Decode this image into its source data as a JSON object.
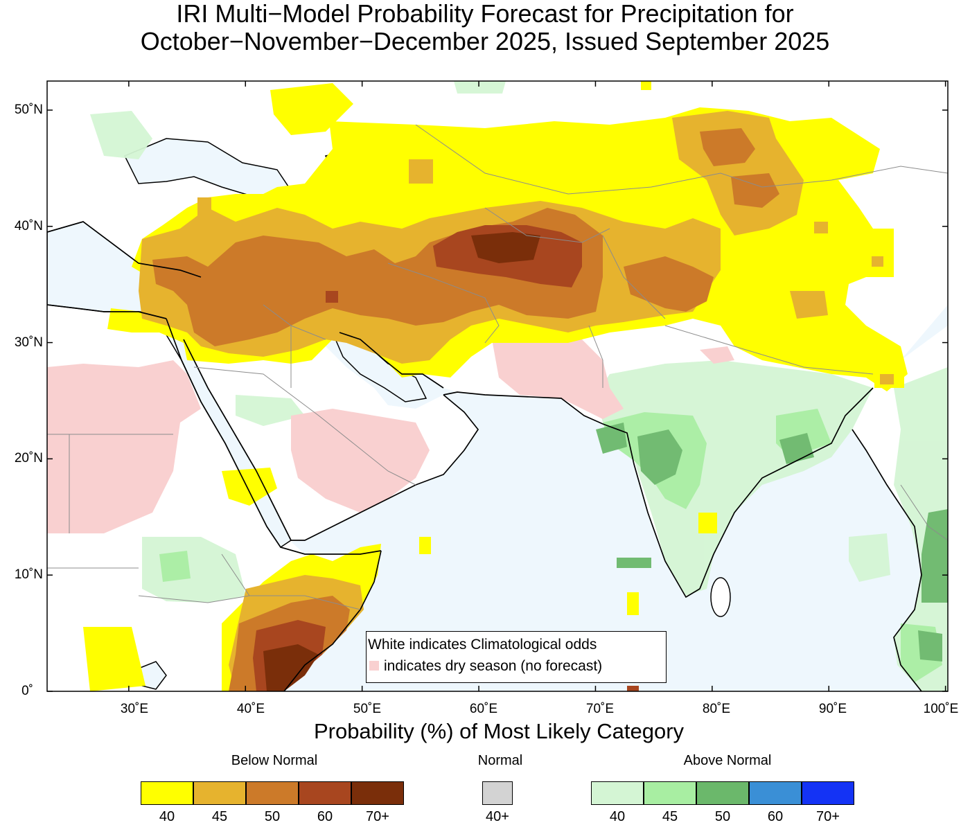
{
  "title": {
    "line1": "IRI Multi−Model Probability Forecast for Precipitation for",
    "line2": "October−November−December 2025, Issued September 2025"
  },
  "map": {
    "lat_labels": [
      "50˚N",
      "40˚N",
      "30˚N",
      "20˚N",
      "10˚N",
      "0˚"
    ],
    "lon_labels": [
      "30˚E",
      "40˚E",
      "50˚E",
      "60˚E",
      "70˚E",
      "80˚E",
      "90˚E",
      "100˚E"
    ],
    "lat_values": [
      50,
      40,
      30,
      20,
      10,
      0
    ],
    "lon_values": [
      30,
      40,
      50,
      60,
      70,
      80,
      90,
      100
    ],
    "extent": {
      "lon_min": 23,
      "lon_max": 100.2,
      "lat_min": 0,
      "lat_max": 52.5
    },
    "colors": {
      "ocean": "#eef7fd",
      "dry_season": "#f9d0d0",
      "land": "#ffffff",
      "coast": "#000000",
      "border": "#8c8c8c"
    }
  },
  "note": {
    "line1": "White indicates Climatological odds",
    "line2": "indicates dry season (no forecast)"
  },
  "legend": {
    "subtitle": "Probability (%) of Most Likely Category",
    "below_normal": {
      "label": "Below Normal",
      "bins": [
        {
          "label": "40",
          "color": "#ffff00"
        },
        {
          "label": "45",
          "color": "#e6b32e"
        },
        {
          "label": "50",
          "color": "#cc7a29"
        },
        {
          "label": "60",
          "color": "#a8461f"
        },
        {
          "label": "70+",
          "color": "#7a2e0a"
        }
      ]
    },
    "normal": {
      "label": "Normal",
      "bins": [
        {
          "label": "40+",
          "color": "#d3d3d3"
        }
      ]
    },
    "above_normal": {
      "label": "Above Normal",
      "bins": [
        {
          "label": "40",
          "color": "#d4f5d4"
        },
        {
          "label": "45",
          "color": "#a8eea2"
        },
        {
          "label": "50",
          "color": "#6bb86b"
        },
        {
          "label": "60",
          "color": "#3a8fd6"
        },
        {
          "label": "70+",
          "color": "#1433f5"
        }
      ]
    }
  }
}
